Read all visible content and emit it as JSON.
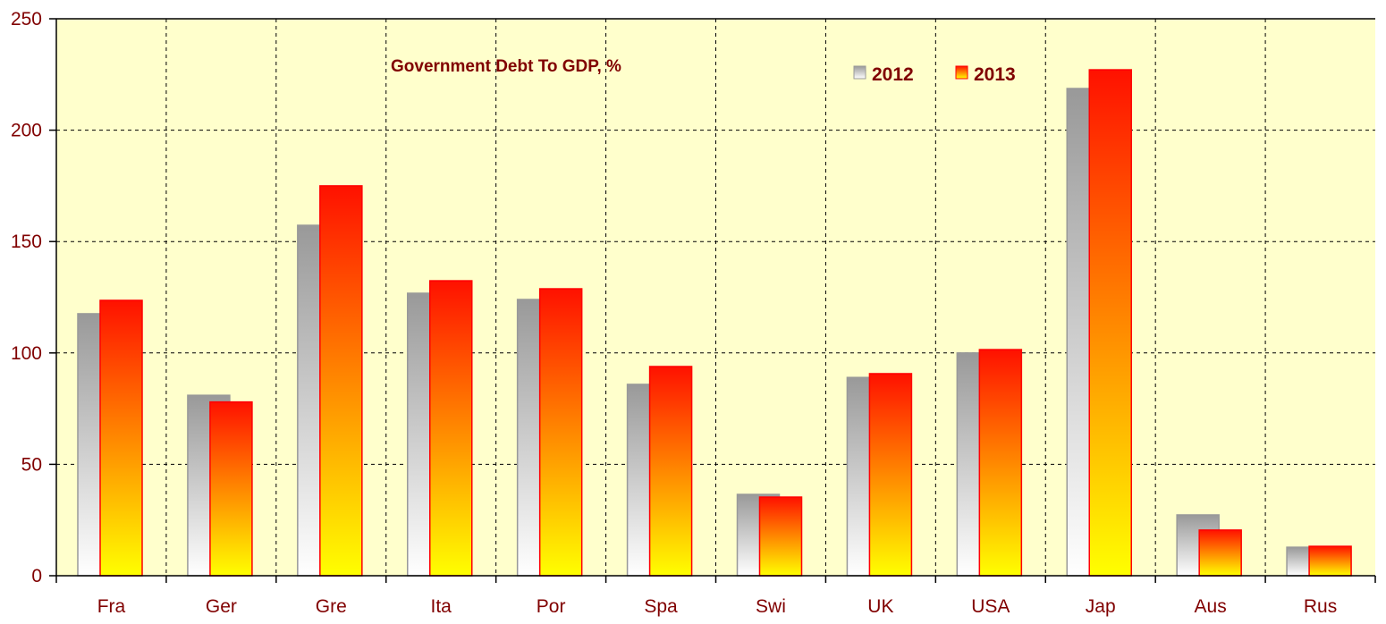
{
  "chart_data": {
    "type": "bar",
    "title": "Government Debt To GDP, %",
    "xlabel": "",
    "ylabel": "",
    "ylim": [
      0,
      250
    ],
    "yticks": [
      0,
      50,
      100,
      150,
      200,
      250
    ],
    "ytick_labels": [
      "0",
      "50",
      "100",
      "150",
      "200",
      "250"
    ],
    "grid": true,
    "legend_position": "top-center",
    "categories": [
      "Fra",
      "Ger",
      "Gre",
      "Ita",
      "Por",
      "Spa",
      "Swi",
      "UK",
      "USA",
      "Jap",
      "Aus",
      "Rus"
    ],
    "series": [
      {
        "name": "2012",
        "values": [
          117.6,
          81.0,
          157.3,
          126.8,
          124.0,
          85.9,
          36.5,
          89.0,
          100.0,
          218.7,
          27.3,
          12.8
        ],
        "gradient_top": "#999999",
        "gradient_bottom": "#ffffff",
        "stroke": "#999999"
      },
      {
        "name": "2013",
        "values": [
          123.6,
          78.0,
          175.0,
          132.4,
          128.8,
          93.9,
          35.3,
          90.7,
          101.5,
          227.1,
          20.5,
          13.2
        ],
        "gradient_top": "#ff1100",
        "gradient_bottom": "#ffff00",
        "stroke": "#ff0000"
      }
    ]
  },
  "colors": {
    "plot_background": "#ffffcc",
    "text": "#800000",
    "axis": "#000000"
  }
}
